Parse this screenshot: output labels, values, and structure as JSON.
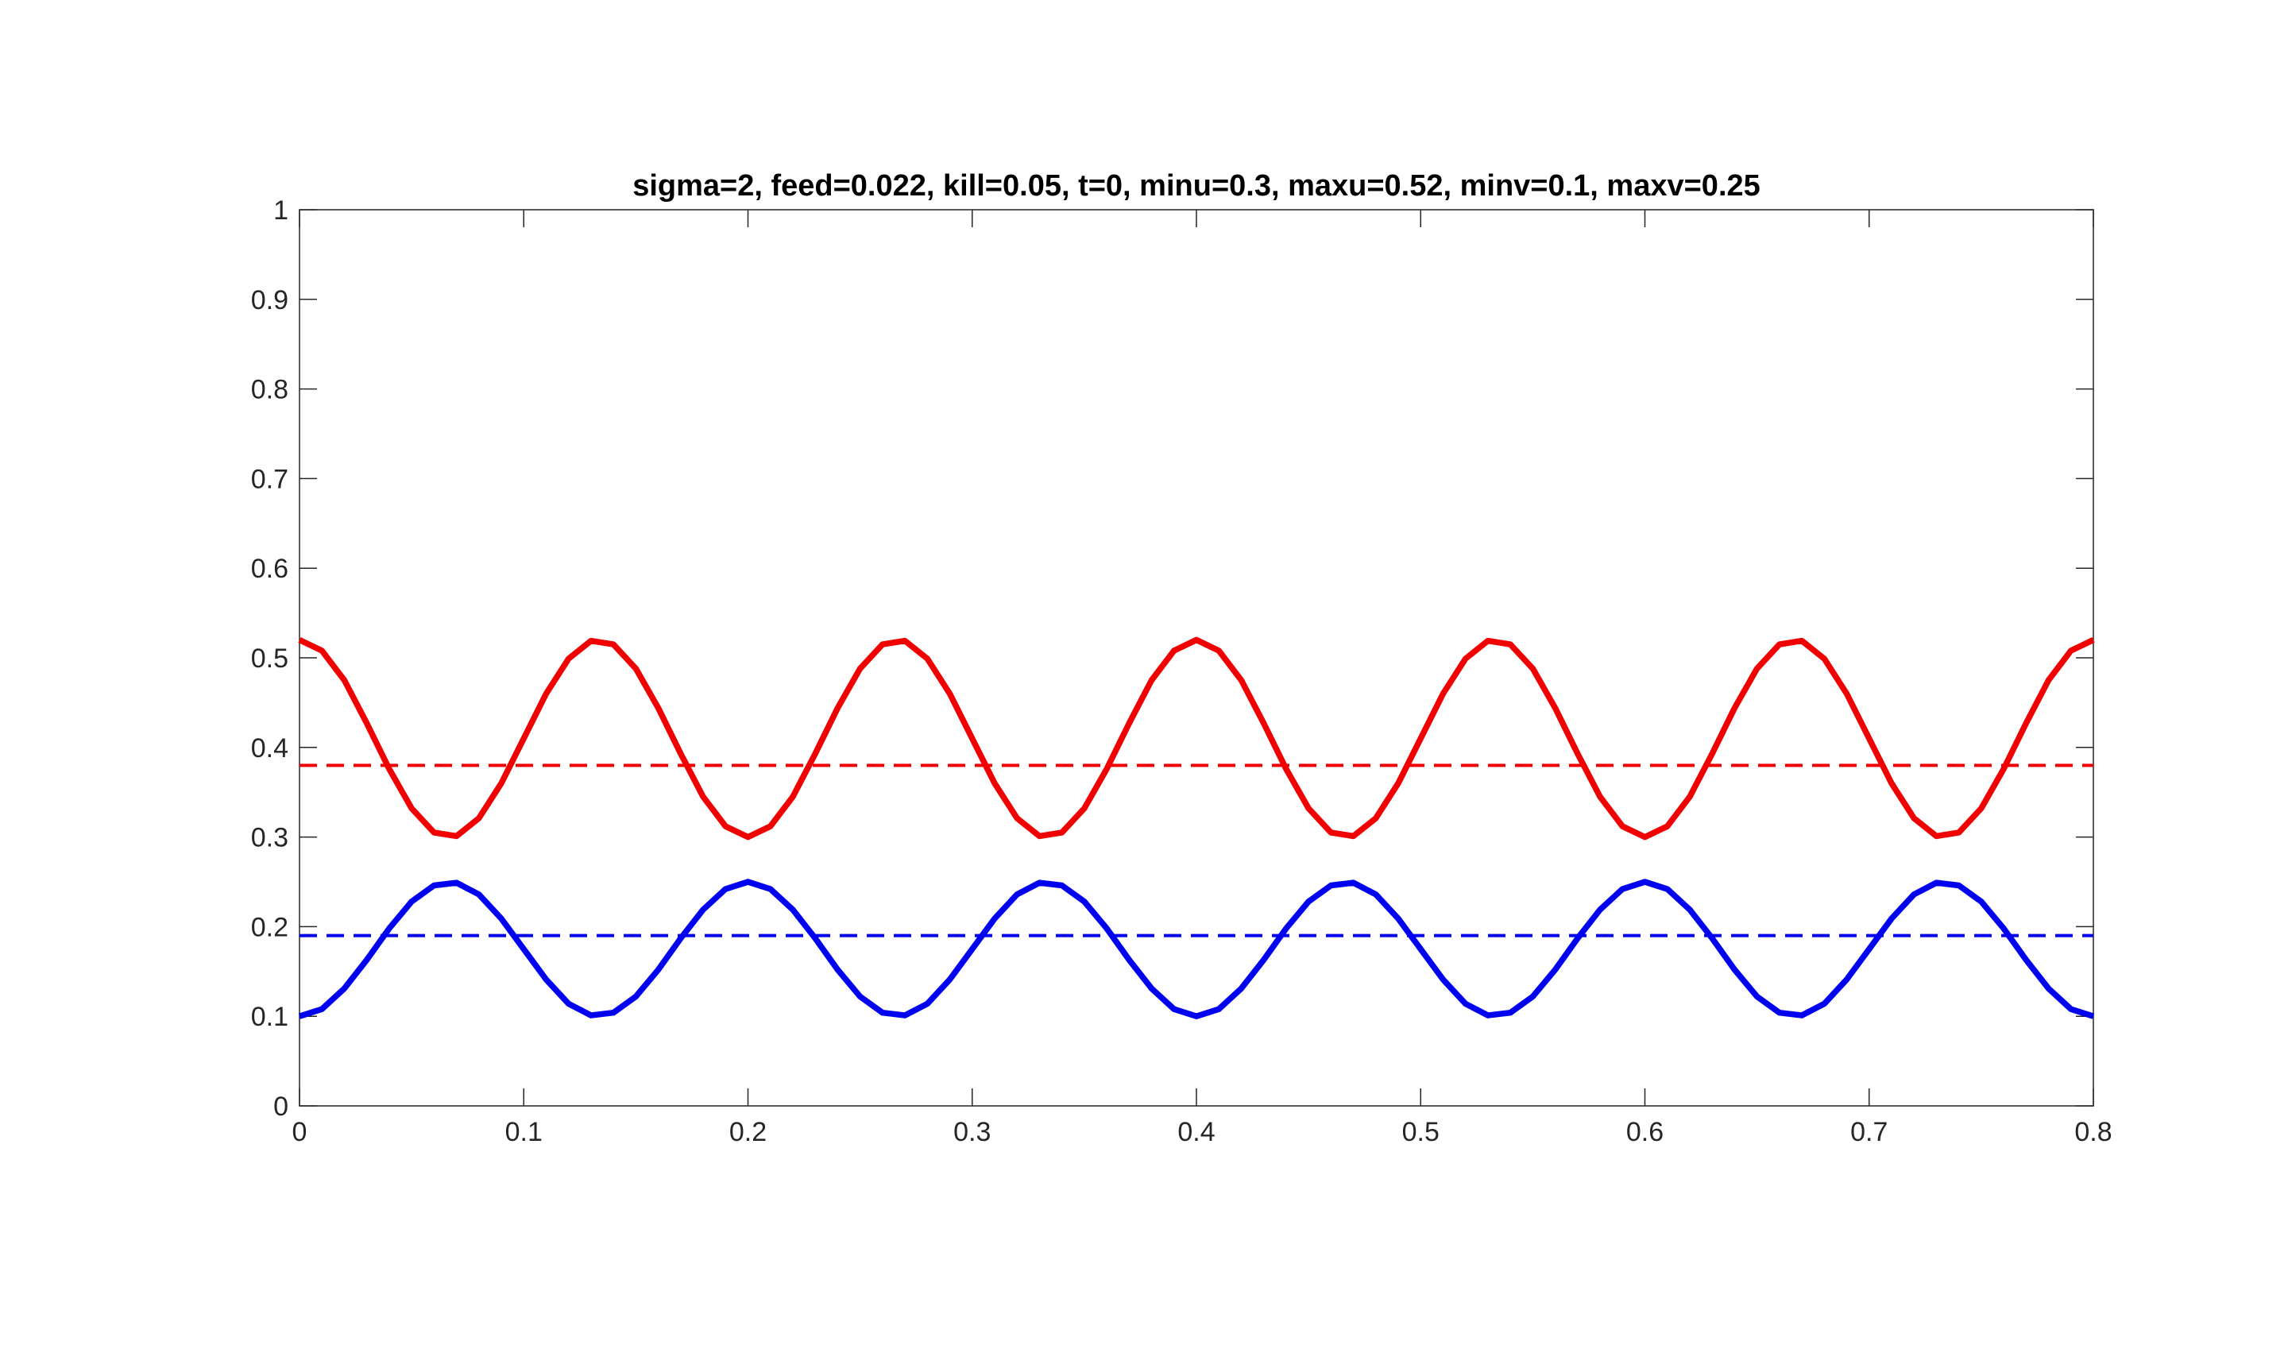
{
  "chart_data": {
    "type": "line",
    "title": "sigma=2, feed=0.022, kill=0.05, t=0, minu=0.3, maxu=0.52, minv=0.1, maxv=0.25",
    "x": [
      0,
      0.01,
      0.02,
      0.03,
      0.04,
      0.05,
      0.06,
      0.07,
      0.08,
      0.09,
      0.1,
      0.11,
      0.12,
      0.13,
      0.14,
      0.15,
      0.16,
      0.17,
      0.18,
      0.19,
      0.2,
      0.21,
      0.22,
      0.23,
      0.24,
      0.25,
      0.26,
      0.27,
      0.28,
      0.29,
      0.3,
      0.31,
      0.32,
      0.33,
      0.34,
      0.35,
      0.36,
      0.37,
      0.38,
      0.39,
      0.4,
      0.41,
      0.42,
      0.43,
      0.44,
      0.45,
      0.46,
      0.47,
      0.48,
      0.49,
      0.5,
      0.51,
      0.52,
      0.53,
      0.54,
      0.55,
      0.56,
      0.57,
      0.58,
      0.59,
      0.6,
      0.61,
      0.62,
      0.63,
      0.64,
      0.65,
      0.66,
      0.67,
      0.68,
      0.69,
      0.7,
      0.71,
      0.72,
      0.73,
      0.74,
      0.75,
      0.76,
      0.77,
      0.78,
      0.79,
      0.8
    ],
    "series": [
      {
        "color": "#f00000",
        "dash": false,
        "values": [
          0.52,
          0.508,
          0.475,
          0.427,
          0.376,
          0.332,
          0.305,
          0.301,
          0.321,
          0.36,
          0.41,
          0.46,
          0.499,
          0.519,
          0.515,
          0.488,
          0.444,
          0.393,
          0.345,
          0.312,
          0.3,
          0.312,
          0.345,
          0.393,
          0.444,
          0.488,
          0.515,
          0.519,
          0.499,
          0.46,
          0.41,
          0.36,
          0.321,
          0.301,
          0.305,
          0.332,
          0.376,
          0.427,
          0.475,
          0.508,
          0.52,
          0.508,
          0.475,
          0.427,
          0.376,
          0.332,
          0.305,
          0.301,
          0.321,
          0.36,
          0.41,
          0.46,
          0.499,
          0.519,
          0.515,
          0.488,
          0.444,
          0.393,
          0.345,
          0.312,
          0.3,
          0.312,
          0.345,
          0.393,
          0.444,
          0.488,
          0.515,
          0.519,
          0.499,
          0.46,
          0.41,
          0.36,
          0.321,
          0.301,
          0.305,
          0.332,
          0.376,
          0.427,
          0.475,
          0.508,
          0.52
        ]
      },
      {
        "color": "#0000f0",
        "dash": false,
        "values": [
          0.1,
          0.108,
          0.131,
          0.163,
          0.198,
          0.228,
          0.246,
          0.249,
          0.236,
          0.209,
          0.175,
          0.141,
          0.114,
          0.101,
          0.104,
          0.122,
          0.152,
          0.187,
          0.219,
          0.242,
          0.25,
          0.242,
          0.219,
          0.187,
          0.152,
          0.122,
          0.104,
          0.101,
          0.114,
          0.141,
          0.175,
          0.209,
          0.236,
          0.249,
          0.246,
          0.228,
          0.198,
          0.163,
          0.131,
          0.108,
          0.1,
          0.108,
          0.131,
          0.163,
          0.198,
          0.228,
          0.246,
          0.249,
          0.236,
          0.209,
          0.175,
          0.141,
          0.114,
          0.101,
          0.104,
          0.122,
          0.152,
          0.187,
          0.219,
          0.242,
          0.25,
          0.242,
          0.219,
          0.187,
          0.152,
          0.122,
          0.104,
          0.101,
          0.114,
          0.141,
          0.175,
          0.209,
          0.236,
          0.249,
          0.246,
          0.228,
          0.198,
          0.163,
          0.131,
          0.108,
          0.1
        ]
      },
      {
        "color": "#f00000",
        "dash": true,
        "x": [
          0,
          0.8
        ],
        "values": [
          0.38,
          0.38
        ]
      },
      {
        "color": "#0000f0",
        "dash": true,
        "x": [
          0,
          0.8
        ],
        "values": [
          0.19,
          0.19
        ]
      }
    ],
    "xlim": [
      0,
      0.8
    ],
    "xticks": [
      0,
      0.1,
      0.2,
      0.3,
      0.4,
      0.5,
      0.6,
      0.7,
      0.8
    ],
    "ylim": [
      0,
      1
    ],
    "yticks": [
      0,
      0.1,
      0.2,
      0.3,
      0.4,
      0.5,
      0.6,
      0.7,
      0.8,
      0.9,
      1
    ],
    "grid": false
  }
}
